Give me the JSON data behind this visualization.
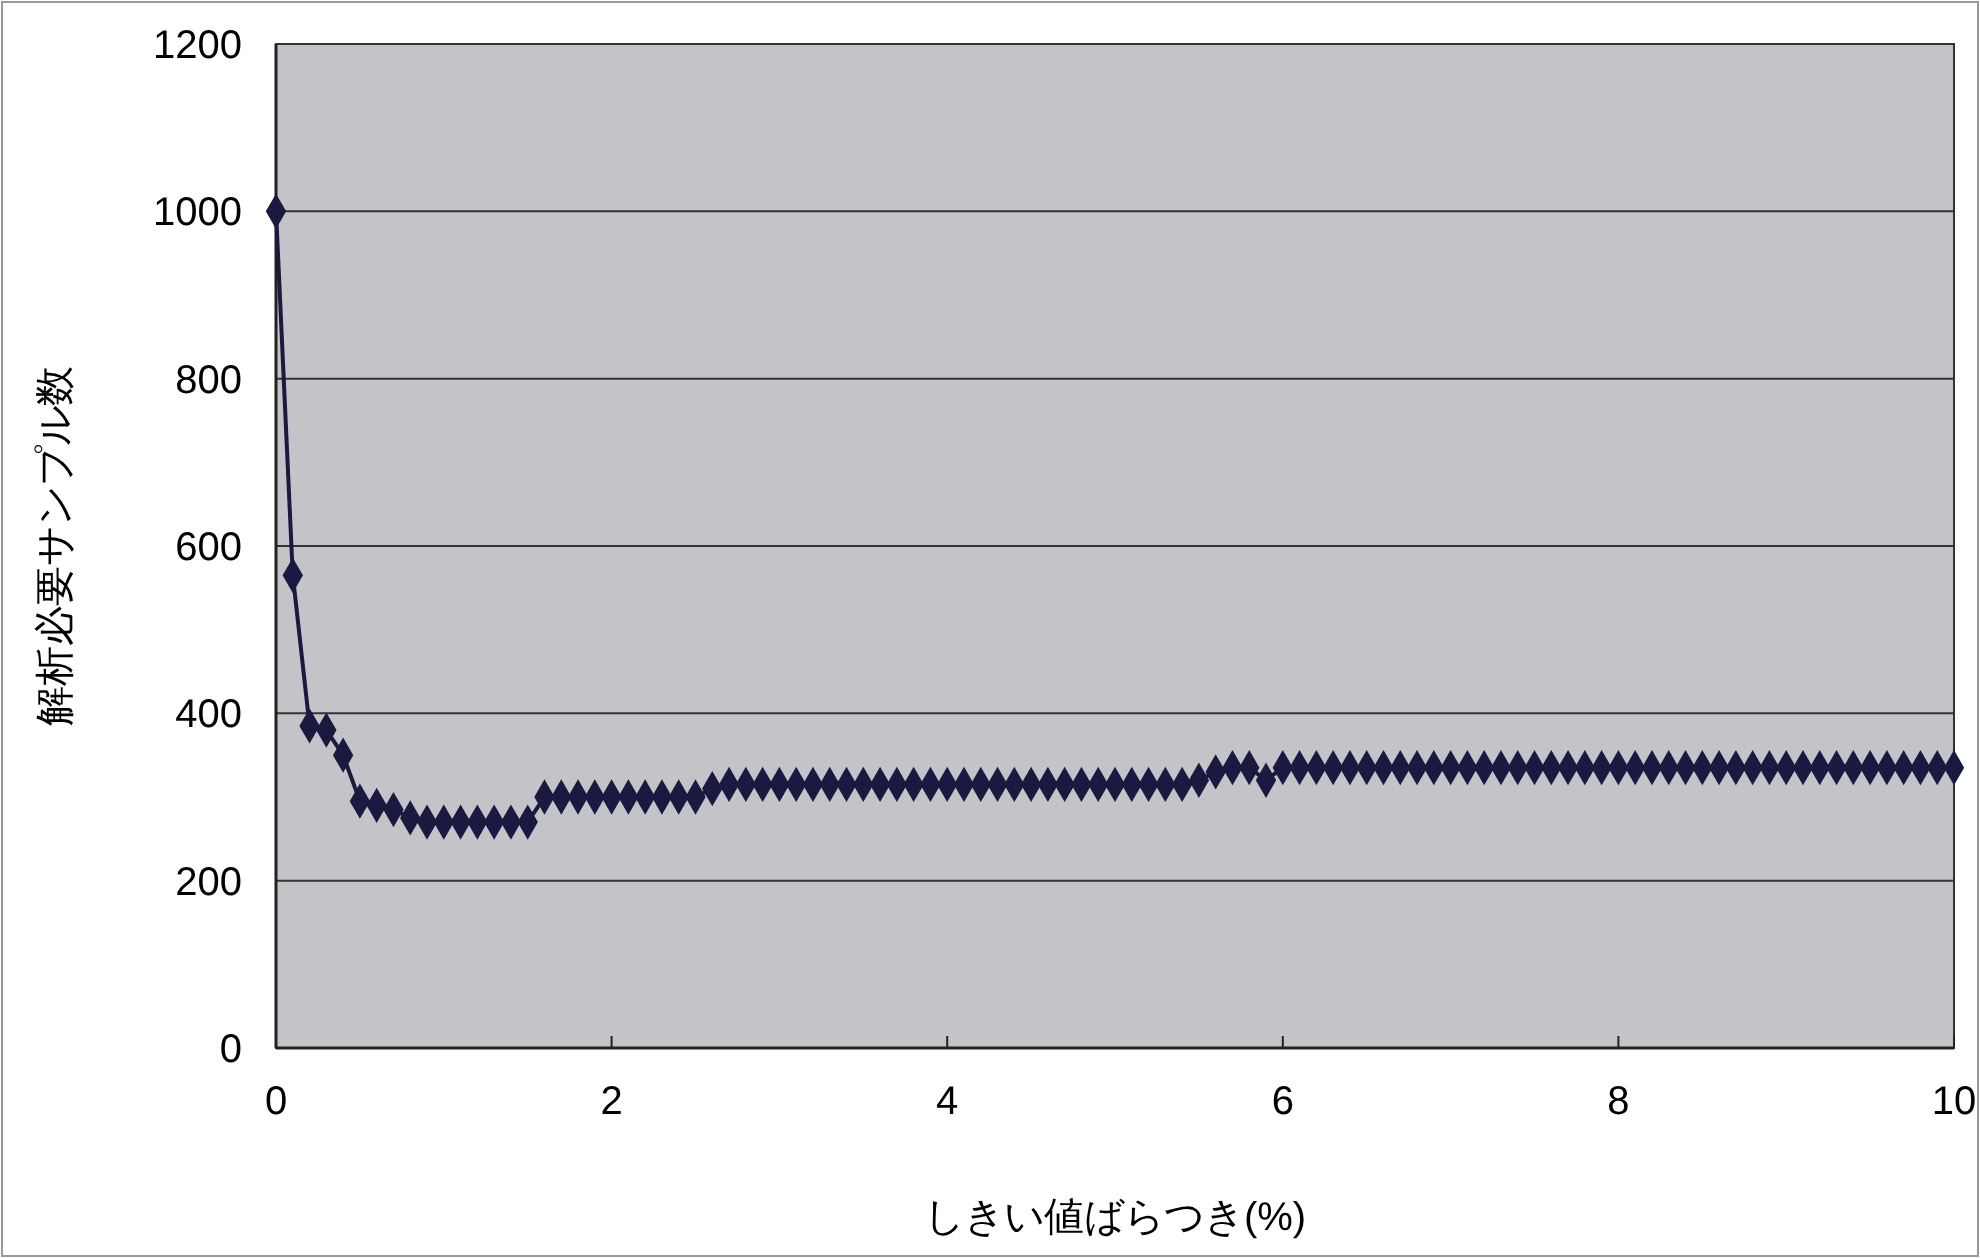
{
  "chart_data": {
    "type": "line",
    "xlabel": "しきい値ばらつき(%)",
    "ylabel": "解析必要サンプル数",
    "x": [
      0,
      0.1,
      0.2,
      0.3,
      0.4,
      0.5,
      0.6,
      0.7,
      0.8,
      0.9,
      1,
      1.1,
      1.2,
      1.3,
      1.4,
      1.5,
      1.6,
      1.7,
      1.8,
      1.9,
      2,
      2.1,
      2.2,
      2.3,
      2.4,
      2.5,
      2.6,
      2.7,
      2.8,
      2.9,
      3,
      3.1,
      3.2,
      3.3,
      3.4,
      3.5,
      3.6,
      3.7,
      3.8,
      3.9,
      4,
      4.1,
      4.2,
      4.3,
      4.4,
      4.5,
      4.6,
      4.7,
      4.8,
      4.9,
      5,
      5.1,
      5.2,
      5.3,
      5.4,
      5.5,
      5.6,
      5.7,
      5.8,
      5.9,
      6,
      6.1,
      6.2,
      6.3,
      6.4,
      6.5,
      6.6,
      6.7,
      6.8,
      6.9,
      7,
      7.1,
      7.2,
      7.3,
      7.4,
      7.5,
      7.6,
      7.7,
      7.8,
      7.9,
      8,
      8.1,
      8.2,
      8.3,
      8.4,
      8.5,
      8.6,
      8.7,
      8.8,
      8.9,
      9,
      9.1,
      9.2,
      9.3,
      9.4,
      9.5,
      9.6,
      9.7,
      9.8,
      9.9,
      10
    ],
    "series": [
      {
        "color": "#1a1a40",
        "values": [
          1000,
          565,
          385,
          380,
          350,
          295,
          290,
          285,
          275,
          270,
          270,
          270,
          270,
          270,
          270,
          270,
          300,
          300,
          300,
          300,
          300,
          300,
          300,
          300,
          300,
          300,
          310,
          315,
          315,
          315,
          315,
          315,
          315,
          315,
          315,
          315,
          315,
          315,
          315,
          315,
          315,
          315,
          315,
          315,
          315,
          315,
          315,
          315,
          315,
          315,
          315,
          315,
          315,
          315,
          315,
          320,
          330,
          335,
          335,
          320,
          335,
          335,
          335,
          335,
          335,
          335,
          335,
          335,
          335,
          335,
          335,
          335,
          335,
          335,
          335,
          335,
          335,
          335,
          335,
          335,
          335,
          335,
          335,
          335,
          335,
          335,
          335,
          335,
          335,
          335,
          335,
          335,
          335,
          335,
          335,
          335,
          335,
          335,
          335,
          335,
          335
        ]
      }
    ],
    "xlim": [
      0,
      10
    ],
    "xticks": [
      0,
      2,
      4,
      6,
      8,
      10
    ],
    "ylim": [
      0,
      1200
    ],
    "yticks": [
      0,
      200,
      400,
      600,
      800,
      1000,
      1200
    ],
    "grid": "y",
    "marker": "diamond",
    "line_style": "solid"
  }
}
